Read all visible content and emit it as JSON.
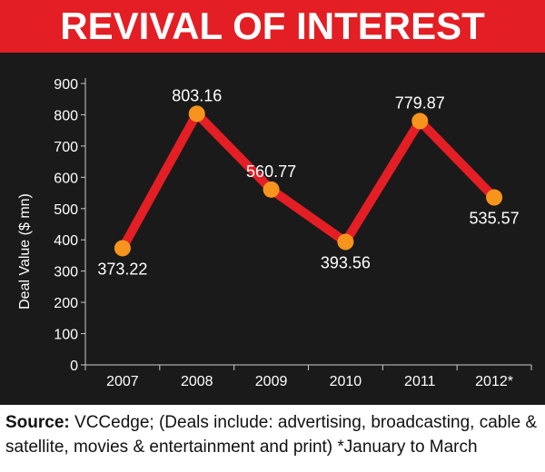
{
  "title": "REVIVAL OF INTEREST",
  "source_label": "Source:",
  "source_text": " VCCedge; (Deals include: advertising, broadcasting, cable & satellite, movies & entertainment and print) *January to March",
  "colors": {
    "title_bg": "#e31e24",
    "chart_bg": "#1a1a1a",
    "line": "#e31e24",
    "marker": "#f7941d",
    "text": "#ffffff"
  },
  "chart_data": {
    "type": "line",
    "ylabel": "Deal Value ($ mn)",
    "xlabel": "",
    "categories": [
      "2007",
      "2008",
      "2009",
      "2010",
      "2011",
      "2012*"
    ],
    "values": [
      373.22,
      803.16,
      560.77,
      393.56,
      779.87,
      535.57
    ],
    "value_labels": [
      "373.22",
      "803.16",
      "560.77",
      "393.56",
      "779.87",
      "535.57"
    ],
    "yticks": [
      "0",
      "100",
      "200",
      "300",
      "400",
      "500",
      "600",
      "700",
      "800",
      "900"
    ],
    "ylim": [
      0,
      900
    ],
    "grid": true,
    "legend": "none"
  }
}
